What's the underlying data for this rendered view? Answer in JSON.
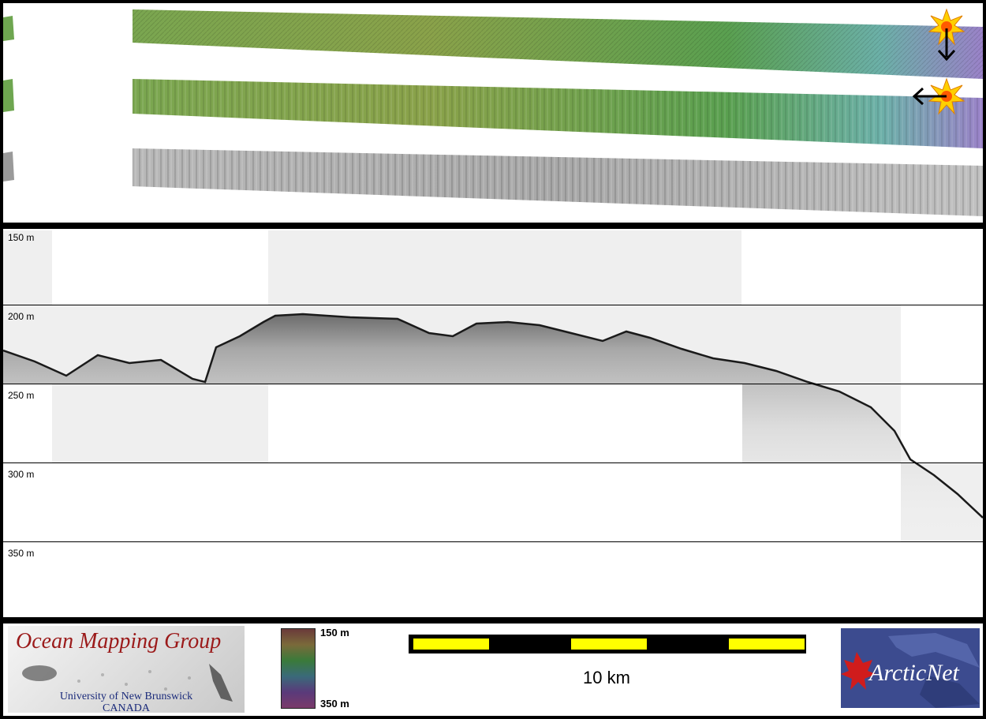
{
  "profile": {
    "depth_labels": [
      "150 m",
      "200 m",
      "250 m",
      "300 m",
      "350 m"
    ]
  },
  "colorbar": {
    "top_label": "150 m",
    "bottom_label": "350 m"
  },
  "scale": {
    "label": "10 km"
  },
  "logos": {
    "omg_title": "Ocean Mapping Group",
    "omg_line1": "University of New Brunswick",
    "omg_line2": "CANADA",
    "arcticnet": "ArcticNet"
  },
  "colors": {
    "frame": "#000000",
    "scale_segment": "#ffff00",
    "omg_red": "#9b1a1a",
    "arcticnet_blue": "#3c4b8f"
  },
  "icons": [
    "sun-icon",
    "arrow-down-icon",
    "arrow-left-icon"
  ]
}
